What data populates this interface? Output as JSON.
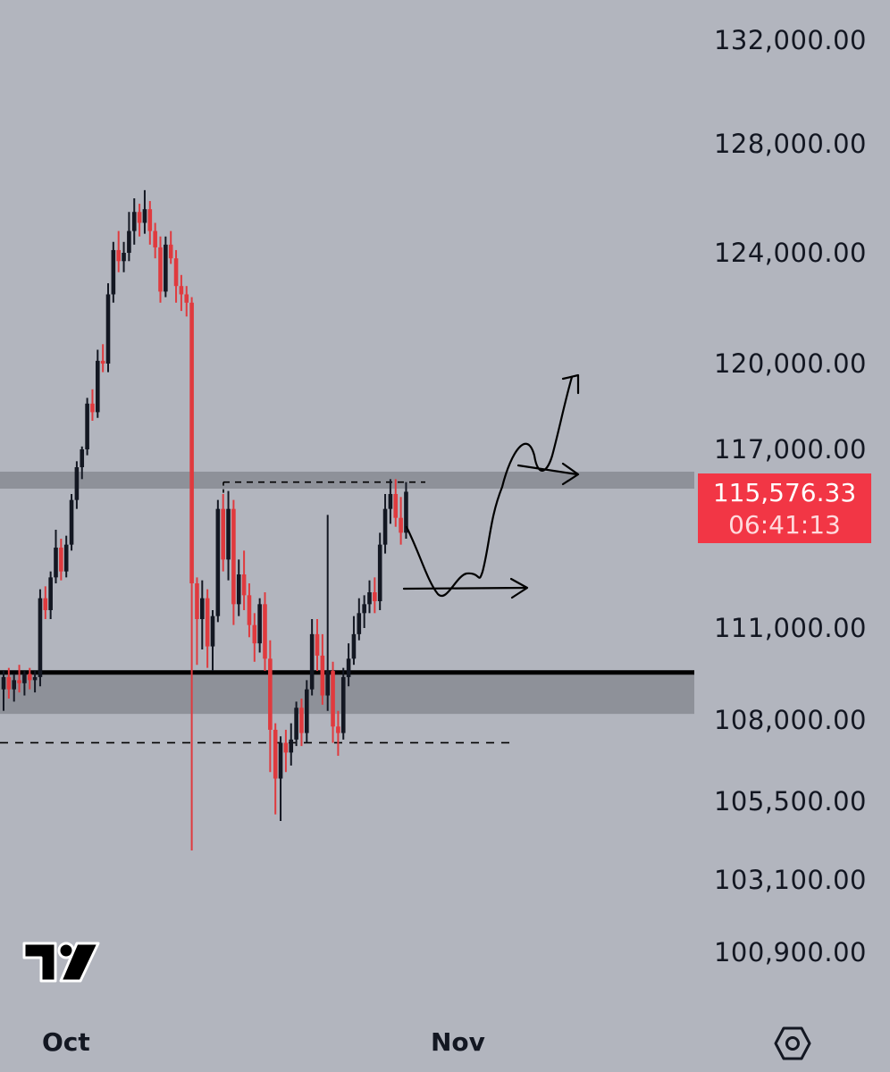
{
  "price_axis": [
    "132,000.00",
    "128,000.00",
    "124,000.00",
    "120,000.00",
    "117,000.00",
    "111,000.00",
    "108,000.00",
    "105,500.00",
    "103,100.00",
    "100,900.00"
  ],
  "current_price": {
    "value": "115,576.33",
    "countdown": "06:41:13",
    "color": "#f23645"
  },
  "date_axis": [
    "Oct",
    "Nov"
  ],
  "icons": {
    "logo": "tradingview-logo-icon",
    "settings": "settings-icon"
  },
  "colors": {
    "background": "#b2b5be",
    "up": "#131722",
    "down": "#e03a3e",
    "zone": "#8e9199",
    "current_price": "#f23645"
  },
  "chart_data": {
    "type": "candlestick",
    "title": "",
    "xlabel": "",
    "ylabel": "",
    "y_ticks": [
      132000,
      128000,
      124000,
      120000,
      117000,
      111000,
      108000,
      105500,
      103100,
      100900
    ],
    "ylim": [
      100900,
      132000
    ],
    "x_ticks": [
      "Oct",
      "Nov"
    ],
    "grid": false,
    "zones": [
      {
        "name": "resistance",
        "from": 115680,
        "to": 116250
      },
      {
        "name": "support",
        "from": 108200,
        "to": 109500
      }
    ],
    "lines": [
      {
        "style": "solid",
        "price": 109550
      },
      {
        "style": "dashed",
        "price": 115900
      },
      {
        "style": "dashed",
        "price": 107300
      }
    ],
    "candles": [
      [
        109000,
        109600,
        108300,
        109400
      ],
      [
        109400,
        109700,
        108700,
        109000
      ],
      [
        109000,
        109500,
        108600,
        109300
      ],
      [
        109300,
        109800,
        108900,
        109200
      ],
      [
        109200,
        109600,
        108800,
        109500
      ],
      [
        109500,
        109700,
        109000,
        109300
      ],
      [
        109300,
        109600,
        108900,
        109400
      ],
      [
        109400,
        112300,
        109100,
        112000
      ],
      [
        112000,
        112400,
        111300,
        111600
      ],
      [
        111600,
        112900,
        111300,
        112700
      ],
      [
        112700,
        114300,
        112500,
        113700
      ],
      [
        113700,
        114000,
        112600,
        112900
      ],
      [
        112900,
        114100,
        112700,
        113800
      ],
      [
        113800,
        115500,
        113600,
        115300
      ],
      [
        115300,
        116600,
        115000,
        116400
      ],
      [
        116400,
        117100,
        116000,
        117000
      ],
      [
        117000,
        118800,
        116800,
        118600
      ],
      [
        118600,
        119100,
        118000,
        118300
      ],
      [
        118300,
        120500,
        118100,
        120100
      ],
      [
        120100,
        120700,
        119700,
        120000
      ],
      [
        120000,
        122900,
        119700,
        122500
      ],
      [
        122500,
        124400,
        122200,
        124100
      ],
      [
        124100,
        124800,
        123300,
        123700
      ],
      [
        123700,
        124400,
        123300,
        124000
      ],
      [
        124000,
        125500,
        123700,
        124800
      ],
      [
        124800,
        126000,
        124300,
        125500
      ],
      [
        125500,
        125800,
        124600,
        125100
      ],
      [
        125100,
        126300,
        124700,
        125600
      ],
      [
        125600,
        125900,
        124300,
        124800
      ],
      [
        124800,
        125100,
        123800,
        124200
      ],
      [
        124200,
        124600,
        122200,
        122600
      ],
      [
        122600,
        124600,
        122400,
        124300
      ],
      [
        124300,
        124800,
        123600,
        123800
      ],
      [
        123800,
        124100,
        122200,
        122800
      ],
      [
        122800,
        123200,
        121900,
        122500
      ],
      [
        122500,
        122800,
        121700,
        122200
      ],
      [
        122200,
        122400,
        104000,
        112500
      ],
      [
        112500,
        112700,
        109800,
        111300
      ],
      [
        111300,
        112600,
        110300,
        112000
      ],
      [
        112000,
        112300,
        109700,
        110400
      ],
      [
        110400,
        111600,
        109600,
        111400
      ],
      [
        111400,
        115300,
        111200,
        115000
      ],
      [
        115000,
        115500,
        112900,
        113300
      ],
      [
        113300,
        115600,
        112600,
        115000
      ],
      [
        115000,
        115300,
        111100,
        111800
      ],
      [
        111800,
        113300,
        111400,
        112800
      ],
      [
        112800,
        113600,
        111600,
        112100
      ],
      [
        112100,
        112500,
        110700,
        111100
      ],
      [
        111100,
        111500,
        109900,
        110500
      ],
      [
        110500,
        112000,
        110200,
        111800
      ],
      [
        111800,
        112200,
        109600,
        110000
      ],
      [
        110000,
        110600,
        106400,
        107700
      ],
      [
        107700,
        107900,
        105100,
        106200
      ],
      [
        106200,
        107500,
        104900,
        107300
      ],
      [
        107300,
        107700,
        106400,
        107000
      ],
      [
        107000,
        107900,
        106600,
        107400
      ],
      [
        107400,
        108600,
        107200,
        108400
      ],
      [
        108400,
        108700,
        107200,
        107600
      ],
      [
        107600,
        109300,
        107300,
        109000
      ],
      [
        109000,
        111300,
        108800,
        110800
      ],
      [
        110800,
        111300,
        109600,
        110100
      ],
      [
        110100,
        110800,
        108500,
        108800
      ],
      [
        108800,
        114800,
        108300,
        109600
      ],
      [
        109600,
        109900,
        107300,
        107800
      ],
      [
        107800,
        108300,
        106900,
        107600
      ],
      [
        107600,
        109700,
        107400,
        109400
      ],
      [
        109400,
        110500,
        109100,
        110000
      ],
      [
        110000,
        111400,
        109800,
        110800
      ],
      [
        110800,
        112000,
        110600,
        111500
      ],
      [
        111500,
        112100,
        111000,
        111800
      ],
      [
        111800,
        112600,
        111500,
        112200
      ],
      [
        112200,
        112700,
        111500,
        111900
      ],
      [
        111900,
        114200,
        111600,
        113800
      ],
      [
        113800,
        115500,
        113500,
        115000
      ],
      [
        115000,
        116000,
        114500,
        115500
      ],
      [
        115500,
        116000,
        114400,
        114700
      ],
      [
        114700,
        115400,
        113800,
        114200
      ],
      [
        114200,
        115900,
        114000,
        115576.33
      ]
    ],
    "annotations": [
      {
        "type": "freehand-arrow",
        "description": "projected dip then breakout up"
      },
      {
        "type": "arrow",
        "direction": "right"
      },
      {
        "type": "arrow",
        "direction": "right"
      }
    ]
  }
}
